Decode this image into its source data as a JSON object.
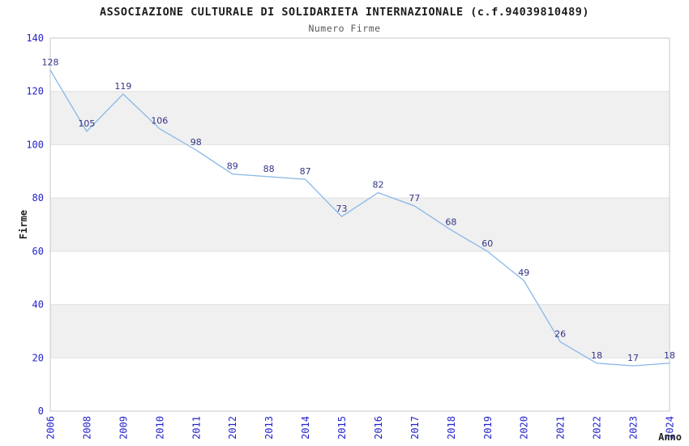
{
  "chart_data": {
    "type": "line",
    "title": "ASSOCIAZIONE CULTURALE DI SOLIDARIETA INTERNAZIONALE (c.f.94039810489)",
    "subtitle": "Numero Firme",
    "xlabel": "Anno",
    "ylabel": "Firme",
    "x": [
      "2006",
      "2008",
      "2009",
      "2010",
      "2011",
      "2012",
      "2013",
      "2014",
      "2015",
      "2016",
      "2017",
      "2018",
      "2019",
      "2020",
      "2021",
      "2022",
      "2023",
      "2024"
    ],
    "values": [
      128,
      105,
      119,
      106,
      98,
      89,
      88,
      87,
      73,
      82,
      77,
      68,
      60,
      49,
      26,
      18,
      17,
      18
    ],
    "ylim": [
      0,
      140
    ],
    "yticks": [
      0,
      20,
      40,
      60,
      80,
      100,
      120,
      140
    ],
    "grid": "alternating-horizontal-bands",
    "legend": "none",
    "data_labels_visible": true,
    "x_tick_rotation": 90
  },
  "colors": {
    "line": "#89b7e9",
    "tick_label": "#2323cc",
    "data_label": "#333388",
    "band_fill": "#f0f0f0",
    "gridline": "#e0e0e0",
    "plot_border": "#c8c8c8",
    "title": "#1c1c1c",
    "subtitle": "#595959",
    "axis_title": "#222222",
    "background": "#ffffff"
  }
}
